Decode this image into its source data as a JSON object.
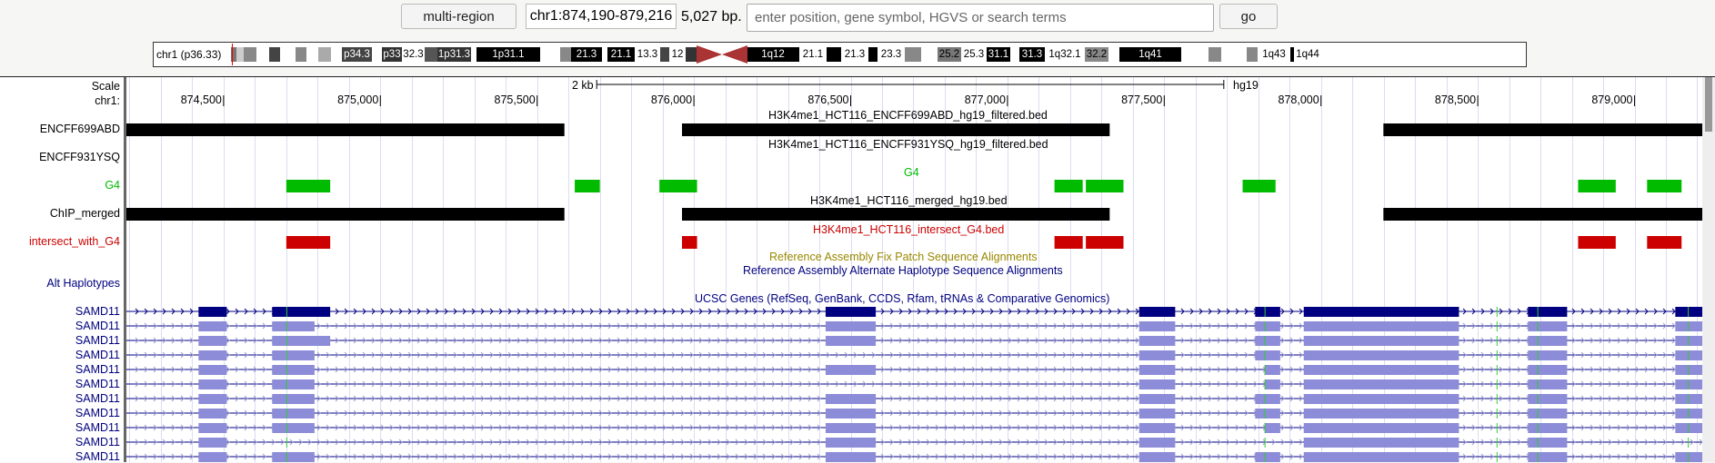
{
  "toolbar": {
    "multi_region_label": "multi-region",
    "position": "chr1:874,190-879,216",
    "bp": "5,027 bp.",
    "search_placeholder": "enter position, gene symbol, HGVS or search terms",
    "go_label": "go"
  },
  "ideogram": {
    "chrom_label": "chr1 (p36.33)",
    "bands": [
      "p34.3",
      "p33",
      "32.3",
      "1p31.3",
      "1p31.1",
      "21.3",
      "21.1",
      "13.3",
      "12",
      "1q12",
      "21.1",
      "21.3",
      "23.3",
      "25.2",
      "25.3",
      "31.1",
      "31.3",
      "1q32.1",
      "32.2",
      "1q41",
      "1q43",
      "1q44"
    ]
  },
  "scale": {
    "label": "Scale",
    "size_label": "2 kb",
    "assembly": "hg19",
    "chrom_label": "chr1:",
    "ticks": [
      "874,500",
      "875,000",
      "875,500",
      "876,000",
      "876,500",
      "877,000",
      "877,500",
      "878,000",
      "878,500",
      "879,000"
    ]
  },
  "tracks": [
    {
      "label": "ENCFF699ABD",
      "title": "H3K4me1_HCT116_ENCFF699ABD_hg19_filtered.bed",
      "color": "#000000"
    },
    {
      "label": "ENCFF931YSQ",
      "title": "H3K4me1_HCT116_ENCFF931YSQ_hg19_filtered.bed",
      "color": "#000000"
    },
    {
      "label": "G4",
      "title": "G4",
      "color": "#00bb00"
    },
    {
      "label": "ChIP_merged",
      "title": "H3K4me1_HCT116_merged_hg19.bed",
      "color": "#000000"
    },
    {
      "label": "intersect_with_G4",
      "title": "H3K4me1_HCT116_intersect_G4.bed",
      "color": "#cc0000"
    }
  ],
  "alt": {
    "fix_title": "Reference Assembly Fix Patch Sequence Alignments",
    "alt_title": "Reference Assembly Alternate Haplotype Sequence Alignments",
    "label": "Alt Haplotypes",
    "fix_color": "#998800",
    "alt_color": "#000080"
  },
  "genes": {
    "title": "UCSC Genes (RefSeq, GenBank, CCDS, Rfam, tRNAs & Comparative Genomics)",
    "rows": [
      "SAMD11",
      "SAMD11",
      "SAMD11",
      "SAMD11",
      "SAMD11",
      "SAMD11",
      "SAMD11",
      "SAMD11",
      "SAMD11",
      "SAMD11",
      "SAMD11"
    ],
    "color": "#000080",
    "light_color": "#8c8cd8"
  }
}
